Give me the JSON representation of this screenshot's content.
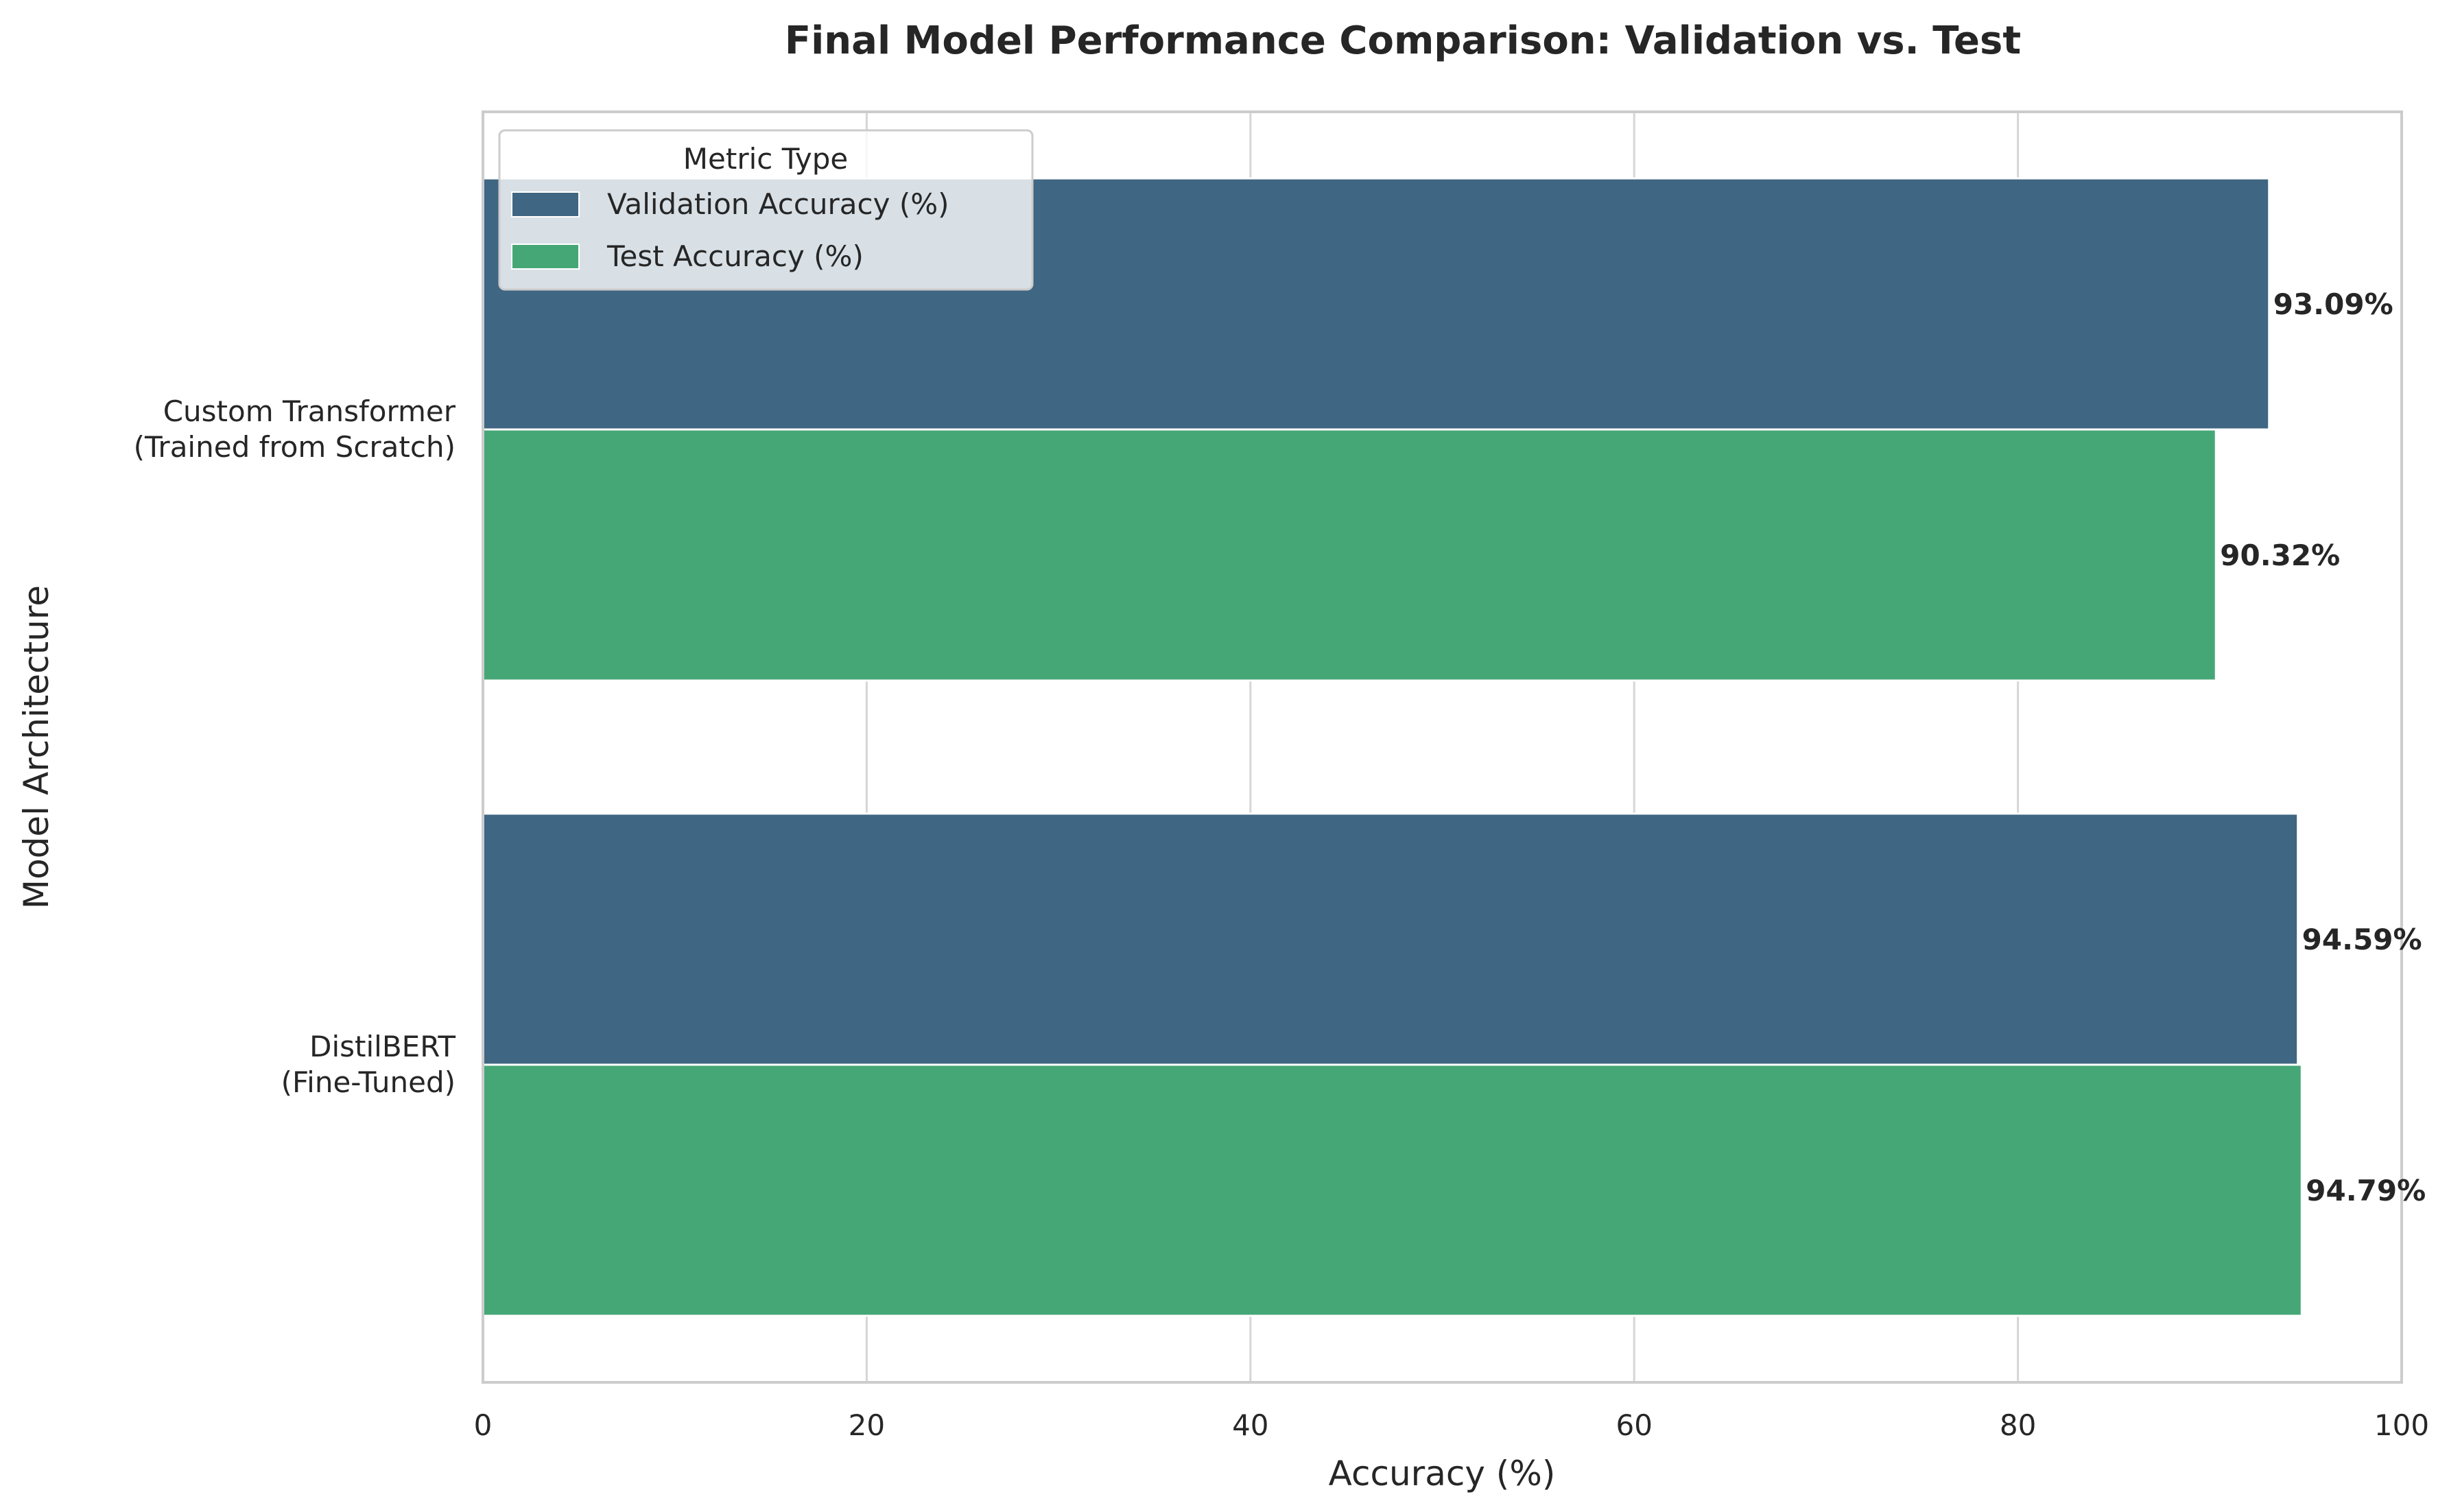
{
  "chart_data": {
    "type": "bar",
    "orientation": "horizontal",
    "title": "Final Model Performance Comparison: Validation vs. Test",
    "xlabel": "Accuracy (%)",
    "ylabel": "Model Architecture",
    "xlim": [
      0,
      100
    ],
    "x_ticks": [
      0,
      20,
      40,
      60,
      80,
      100
    ],
    "grid": true,
    "categories": [
      [
        "Custom Transformer",
        "(Trained from Scratch)"
      ],
      [
        "DistilBERT",
        "(Fine-Tuned)"
      ]
    ],
    "legend": {
      "title": "Metric Type",
      "placement": "top-left"
    },
    "series": [
      {
        "name": "Validation Accuracy (%)",
        "color": "#3f6682",
        "values": [
          93.09,
          94.59
        ],
        "labels": [
          "93.09%",
          "94.59%"
        ]
      },
      {
        "name": "Test Accuracy (%)",
        "color": "#46a776",
        "values": [
          90.32,
          94.79
        ],
        "labels": [
          "90.32%",
          "94.79%"
        ]
      }
    ]
  }
}
